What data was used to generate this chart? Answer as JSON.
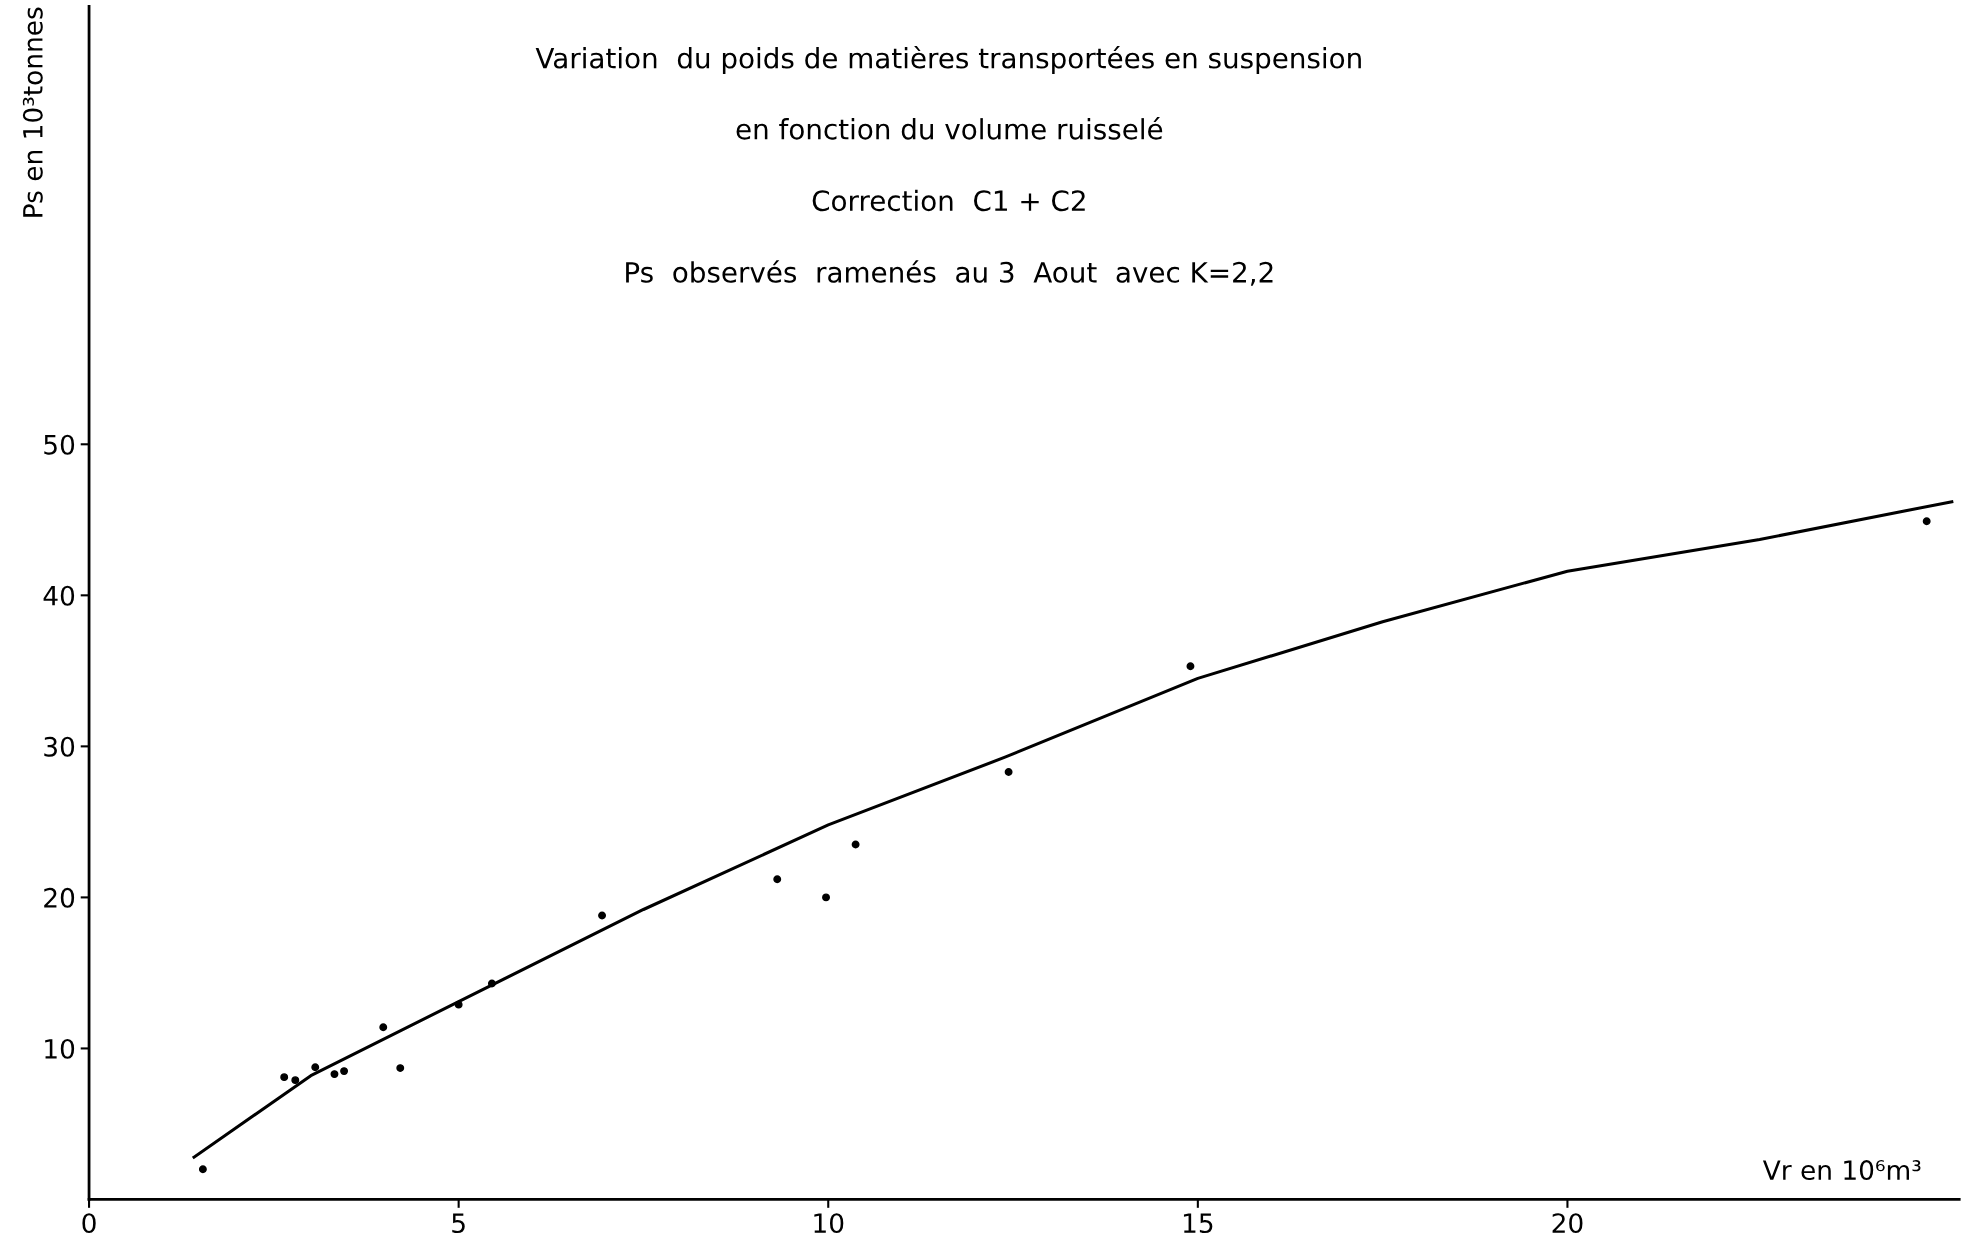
{
  "chart_data": {
    "type": "scatter",
    "title": "Variation  du poids de matières transportées en suspension",
    "subtitle": "en fonction du volume ruisselé",
    "annotations": [
      "Correction  C1 + C2",
      "Ps  observés  ramenés  au 3  Aout  avec K=2,2"
    ],
    "xlabel": "Vr en 10⁶m³",
    "ylabel": "Ps en 10³tonnes",
    "xlim": [
      0,
      25.3
    ],
    "ylim": [
      0,
      79
    ],
    "xticks": [
      0,
      5,
      10,
      15,
      20
    ],
    "yticks": [
      10,
      20,
      30,
      40,
      50
    ],
    "grid": false,
    "legend": false,
    "series": [
      {
        "marker": "circle",
        "color": "#000000",
        "x": [
          1.54,
          2.64,
          2.79,
          3.06,
          3.32,
          3.45,
          3.98,
          4.21,
          5.0,
          5.45,
          6.94,
          9.31,
          9.97,
          10.37,
          12.44,
          14.9,
          24.86
        ],
        "values": [
          2.0,
          8.1,
          7.9,
          8.75,
          8.3,
          8.5,
          11.4,
          8.7,
          12.9,
          14.3,
          18.8,
          21.2,
          20.0,
          23.5,
          28.3,
          35.3,
          44.9
        ]
      },
      {
        "type": "line",
        "color": "#000000",
        "line_style": "solid",
        "x": [
          1.42,
          3,
          5,
          7.5,
          10,
          12.4,
          15,
          17.5,
          20,
          22.6,
          25.2
        ],
        "values": [
          2.8,
          8.2,
          13.1,
          19.2,
          24.8,
          29.3,
          34.5,
          38.25,
          41.6,
          43.7,
          46.2
        ]
      }
    ]
  }
}
